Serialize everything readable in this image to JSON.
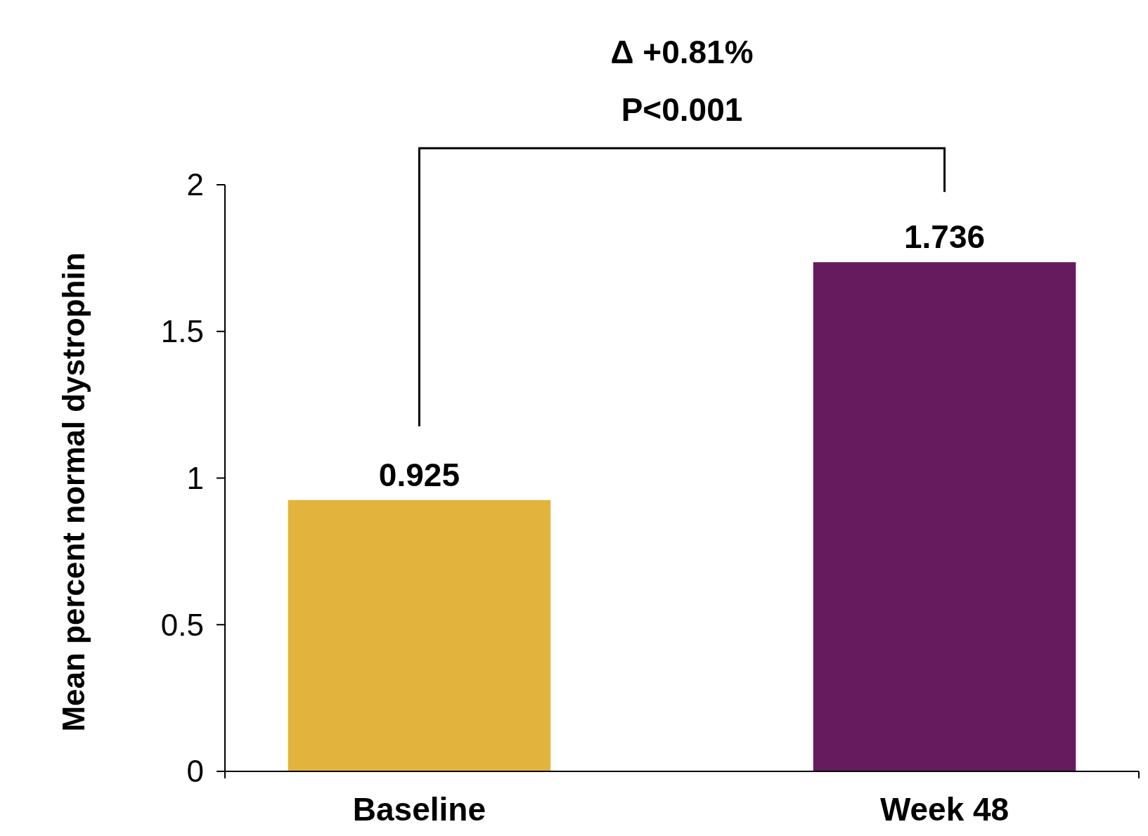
{
  "chart_data": {
    "type": "bar",
    "ylabel": "Mean percent normal dystrophin",
    "categories": [
      "Baseline",
      "Week 48"
    ],
    "values": [
      0.925,
      1.736
    ],
    "colors": [
      "#e3b43c",
      "#651c5e"
    ],
    "ylim": [
      0,
      2
    ],
    "yticks": [
      0,
      0.5,
      1,
      1.5,
      2
    ],
    "data_labels": true,
    "grid": false,
    "annotations": [
      "Δ +0.81%",
      "P<0.001"
    ]
  }
}
